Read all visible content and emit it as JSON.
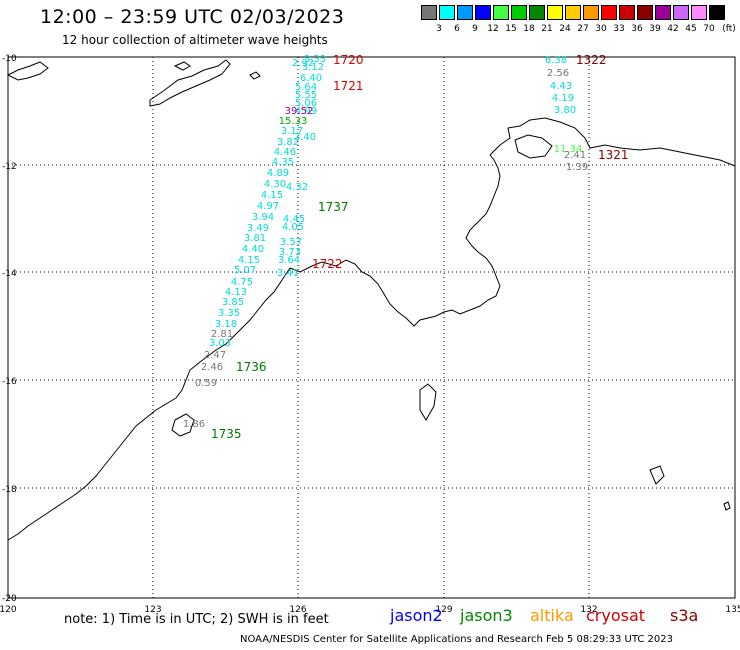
{
  "header": {
    "title": "12:00 – 23:59 UTC 02/03/2023",
    "subtitle": "12 hour collection of altimeter wave heights"
  },
  "colorbar": {
    "unit": "(ft)",
    "colors": [
      "#777777",
      "#00ffff",
      "#0099ff",
      "#0000ff",
      "#44ff44",
      "#00cc00",
      "#008800",
      "#ffff00",
      "#ffcc00",
      "#ff9900",
      "#ff0000",
      "#cc0000",
      "#880000",
      "#990099",
      "#cc66ff",
      "#ff88ff",
      "#000000"
    ],
    "labels": [
      "3",
      "6",
      "9",
      "12",
      "15",
      "18",
      "21",
      "24",
      "27",
      "30",
      "33",
      "36",
      "39",
      "42",
      "45",
      "70"
    ]
  },
  "map": {
    "lat_ticks": [
      "-10",
      "-12",
      "-14",
      "-16",
      "-18",
      "-20"
    ],
    "lon_ticks": [
      "120",
      "123",
      "126",
      "129",
      "132",
      "135"
    ],
    "pass_labels": [
      {
        "text": "1720",
        "color": "#dd0000"
      },
      {
        "text": "1721",
        "color": "#dd0000"
      },
      {
        "text": "1737",
        "color": "#007700"
      },
      {
        "text": "1722",
        "color": "#dd0000"
      },
      {
        "text": "1736",
        "color": "#007700"
      },
      {
        "text": "1735",
        "color": "#007700"
      },
      {
        "text": "1322",
        "color": "#880000"
      },
      {
        "text": "1321",
        "color": "#880000"
      }
    ],
    "wave_values": [
      {
        "v": "3.33",
        "c": "#00dddd"
      },
      {
        "v": "2.92",
        "c": "#00dddd"
      },
      {
        "v": "3.12",
        "c": "#00dddd"
      },
      {
        "v": "6.40",
        "c": "#00dddd"
      },
      {
        "v": "5.64",
        "c": "#00dddd"
      },
      {
        "v": "5.55",
        "c": "#00dddd"
      },
      {
        "v": "5.06",
        "c": "#00dddd"
      },
      {
        "v": "4.99",
        "c": "#00dddd"
      },
      {
        "v": "39.52",
        "c": "#990099"
      },
      {
        "v": "15.33",
        "c": "#00aa00"
      },
      {
        "v": "3.17",
        "c": "#00dddd"
      },
      {
        "v": "3.40",
        "c": "#00dddd"
      },
      {
        "v": "3.82",
        "c": "#00dddd"
      },
      {
        "v": "4.46",
        "c": "#00dddd"
      },
      {
        "v": "4.35",
        "c": "#00dddd"
      },
      {
        "v": "4.89",
        "c": "#00dddd"
      },
      {
        "v": "4.30",
        "c": "#00dddd"
      },
      {
        "v": "4.32",
        "c": "#00dddd"
      },
      {
        "v": "4.15",
        "c": "#00dddd"
      },
      {
        "v": "4.97",
        "c": "#00dddd"
      },
      {
        "v": "3.94",
        "c": "#00dddd"
      },
      {
        "v": "4.45",
        "c": "#00dddd"
      },
      {
        "v": "3.49",
        "c": "#00dddd"
      },
      {
        "v": "4.05",
        "c": "#00dddd"
      },
      {
        "v": "3.81",
        "c": "#00dddd"
      },
      {
        "v": "3.57",
        "c": "#00dddd"
      },
      {
        "v": "4.40",
        "c": "#00dddd"
      },
      {
        "v": "3.73",
        "c": "#00dddd"
      },
      {
        "v": "4.15",
        "c": "#00dddd"
      },
      {
        "v": "3.64",
        "c": "#00dddd"
      },
      {
        "v": "5.07",
        "c": "#00dddd"
      },
      {
        "v": "3.41",
        "c": "#00dddd"
      },
      {
        "v": "4.75",
        "c": "#00dddd"
      },
      {
        "v": "4.13",
        "c": "#00dddd"
      },
      {
        "v": "3.85",
        "c": "#00dddd"
      },
      {
        "v": "3.35",
        "c": "#00dddd"
      },
      {
        "v": "3.18",
        "c": "#00dddd"
      },
      {
        "v": "2.81",
        "c": "#777777"
      },
      {
        "v": "3.03",
        "c": "#00dddd"
      },
      {
        "v": "2.47",
        "c": "#777777"
      },
      {
        "v": "2.46",
        "c": "#777777"
      },
      {
        "v": "0.59",
        "c": "#777777"
      },
      {
        "v": "1.86",
        "c": "#777777"
      },
      {
        "v": "6.38",
        "c": "#00dddd"
      },
      {
        "v": "2.56",
        "c": "#777777"
      },
      {
        "v": "4.43",
        "c": "#00dddd"
      },
      {
        "v": "4.19",
        "c": "#00dddd"
      },
      {
        "v": "3.80",
        "c": "#00dddd"
      },
      {
        "v": "11.34",
        "c": "#44ff44"
      },
      {
        "v": "2.41",
        "c": "#777777"
      },
      {
        "v": "1.39",
        "c": "#777777"
      }
    ]
  },
  "footer": {
    "note": "note:  1) Time is in UTC;  2) SWH is in feet",
    "legend": [
      {
        "name": "jason2",
        "color": "#0000ff"
      },
      {
        "name": "jason3",
        "color": "#008800"
      },
      {
        "name": "altika",
        "color": "#ff9900"
      },
      {
        "name": "cryosat",
        "color": "#cc0000"
      },
      {
        "name": "s3a",
        "color": "#880000"
      }
    ],
    "credit": "NOAA/NESDIS Center for Satellite Applications and Research    Feb  5 08:29:33 UTC 2023"
  }
}
